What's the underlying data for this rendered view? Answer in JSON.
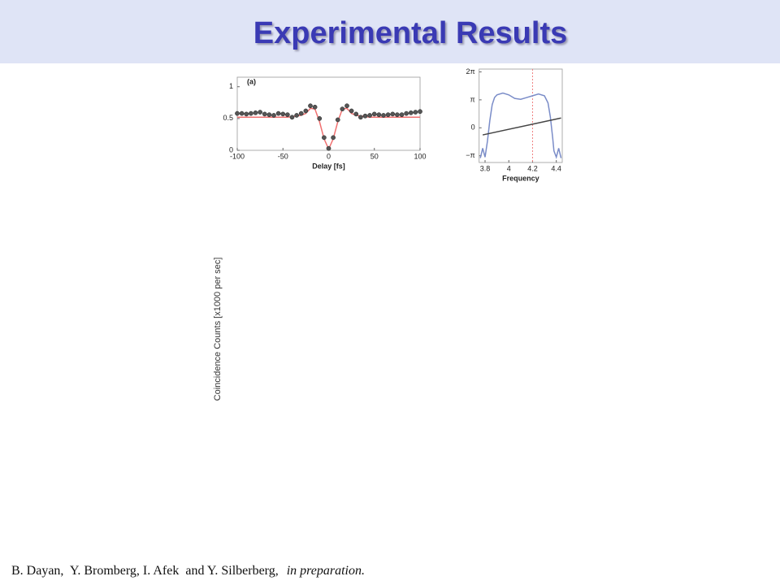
{
  "slide": {
    "title": "Experimental Results",
    "side_label": "Coincidence Counts [x1000 per sec]",
    "citation": {
      "authors": "B. Dayan,  Y. Bromberg, I. Afek  and Y. Silberberg,",
      "note": "in preparation."
    }
  },
  "chart_data": [
    {
      "type": "scatter",
      "annotation": "(a)",
      "x_label": "Delay [fs]",
      "xlim": [
        -100,
        100
      ],
      "xticks": [
        -100,
        -50,
        0,
        50,
        100
      ],
      "ylim": [
        0,
        1.15
      ],
      "yticks": [
        0,
        0.5,
        1
      ],
      "x": [
        -100,
        -95,
        -90,
        -85,
        -80,
        -75,
        -70,
        -65,
        -60,
        -55,
        -50,
        -45,
        -40,
        -35,
        -30,
        -25,
        -20,
        -15,
        -10,
        -5,
        0,
        5,
        10,
        15,
        20,
        25,
        30,
        35,
        40,
        45,
        50,
        55,
        60,
        65,
        70,
        75,
        80,
        85,
        90,
        95,
        100
      ],
      "series": [
        {
          "mode": "line",
          "color": "#f07070",
          "values": [
            0.52,
            0.52,
            0.52,
            0.52,
            0.52,
            0.52,
            0.52,
            0.52,
            0.52,
            0.52,
            0.52,
            0.52,
            0.53,
            0.54,
            0.55,
            0.58,
            0.66,
            0.65,
            0.45,
            0.18,
            0.02,
            0.18,
            0.45,
            0.65,
            0.66,
            0.58,
            0.55,
            0.54,
            0.53,
            0.52,
            0.52,
            0.52,
            0.52,
            0.52,
            0.52,
            0.52,
            0.52,
            0.52,
            0.52,
            0.52,
            0.52
          ]
        },
        {
          "mode": "markers",
          "color": "#555555",
          "values": [
            0.58,
            0.58,
            0.57,
            0.58,
            0.59,
            0.6,
            0.57,
            0.56,
            0.55,
            0.58,
            0.57,
            0.56,
            0.52,
            0.55,
            0.58,
            0.62,
            0.7,
            0.68,
            0.5,
            0.2,
            0.03,
            0.2,
            0.48,
            0.65,
            0.7,
            0.62,
            0.57,
            0.52,
            0.54,
            0.55,
            0.57,
            0.56,
            0.55,
            0.56,
            0.57,
            0.56,
            0.56,
            0.58,
            0.59,
            0.6,
            0.61
          ]
        }
      ]
    },
    {
      "type": "line",
      "x_label": "Frequency",
      "xlim": [
        3.75,
        4.45
      ],
      "xticks": [
        3.8,
        4,
        4.2,
        4.4
      ],
      "ylim": [
        -3.9,
        6.6
      ],
      "yticks": [
        {
          "value": 6.2832,
          "label": "2π"
        },
        {
          "value": 3.1416,
          "label": "π"
        },
        0,
        {
          "value": -3.1416,
          "label": "−π"
        }
      ],
      "reference_x": 4.2,
      "reference_color": "#f08080",
      "series": [
        {
          "mode": "line",
          "color": "#7a8cc8",
          "x": [
            3.76,
            3.78,
            3.8,
            3.82,
            3.84,
            3.86,
            3.88,
            3.9,
            3.95,
            4.0,
            4.05,
            4.1,
            4.15,
            4.2,
            4.25,
            4.3,
            4.33,
            4.35,
            4.37,
            4.38,
            4.4,
            4.42,
            4.44
          ],
          "values": [
            -3.4,
            -2.3,
            -3.3,
            -1.5,
            0.8,
            2.6,
            3.4,
            3.7,
            3.9,
            3.7,
            3.3,
            3.2,
            3.4,
            3.6,
            3.8,
            3.6,
            2.8,
            1.2,
            -1.2,
            -2.6,
            -3.3,
            -2.3,
            -3.4
          ]
        },
        {
          "mode": "line",
          "color": "#444444",
          "x": [
            3.78,
            4.44
          ],
          "values": [
            -0.8,
            1.1
          ]
        }
      ]
    }
  ]
}
